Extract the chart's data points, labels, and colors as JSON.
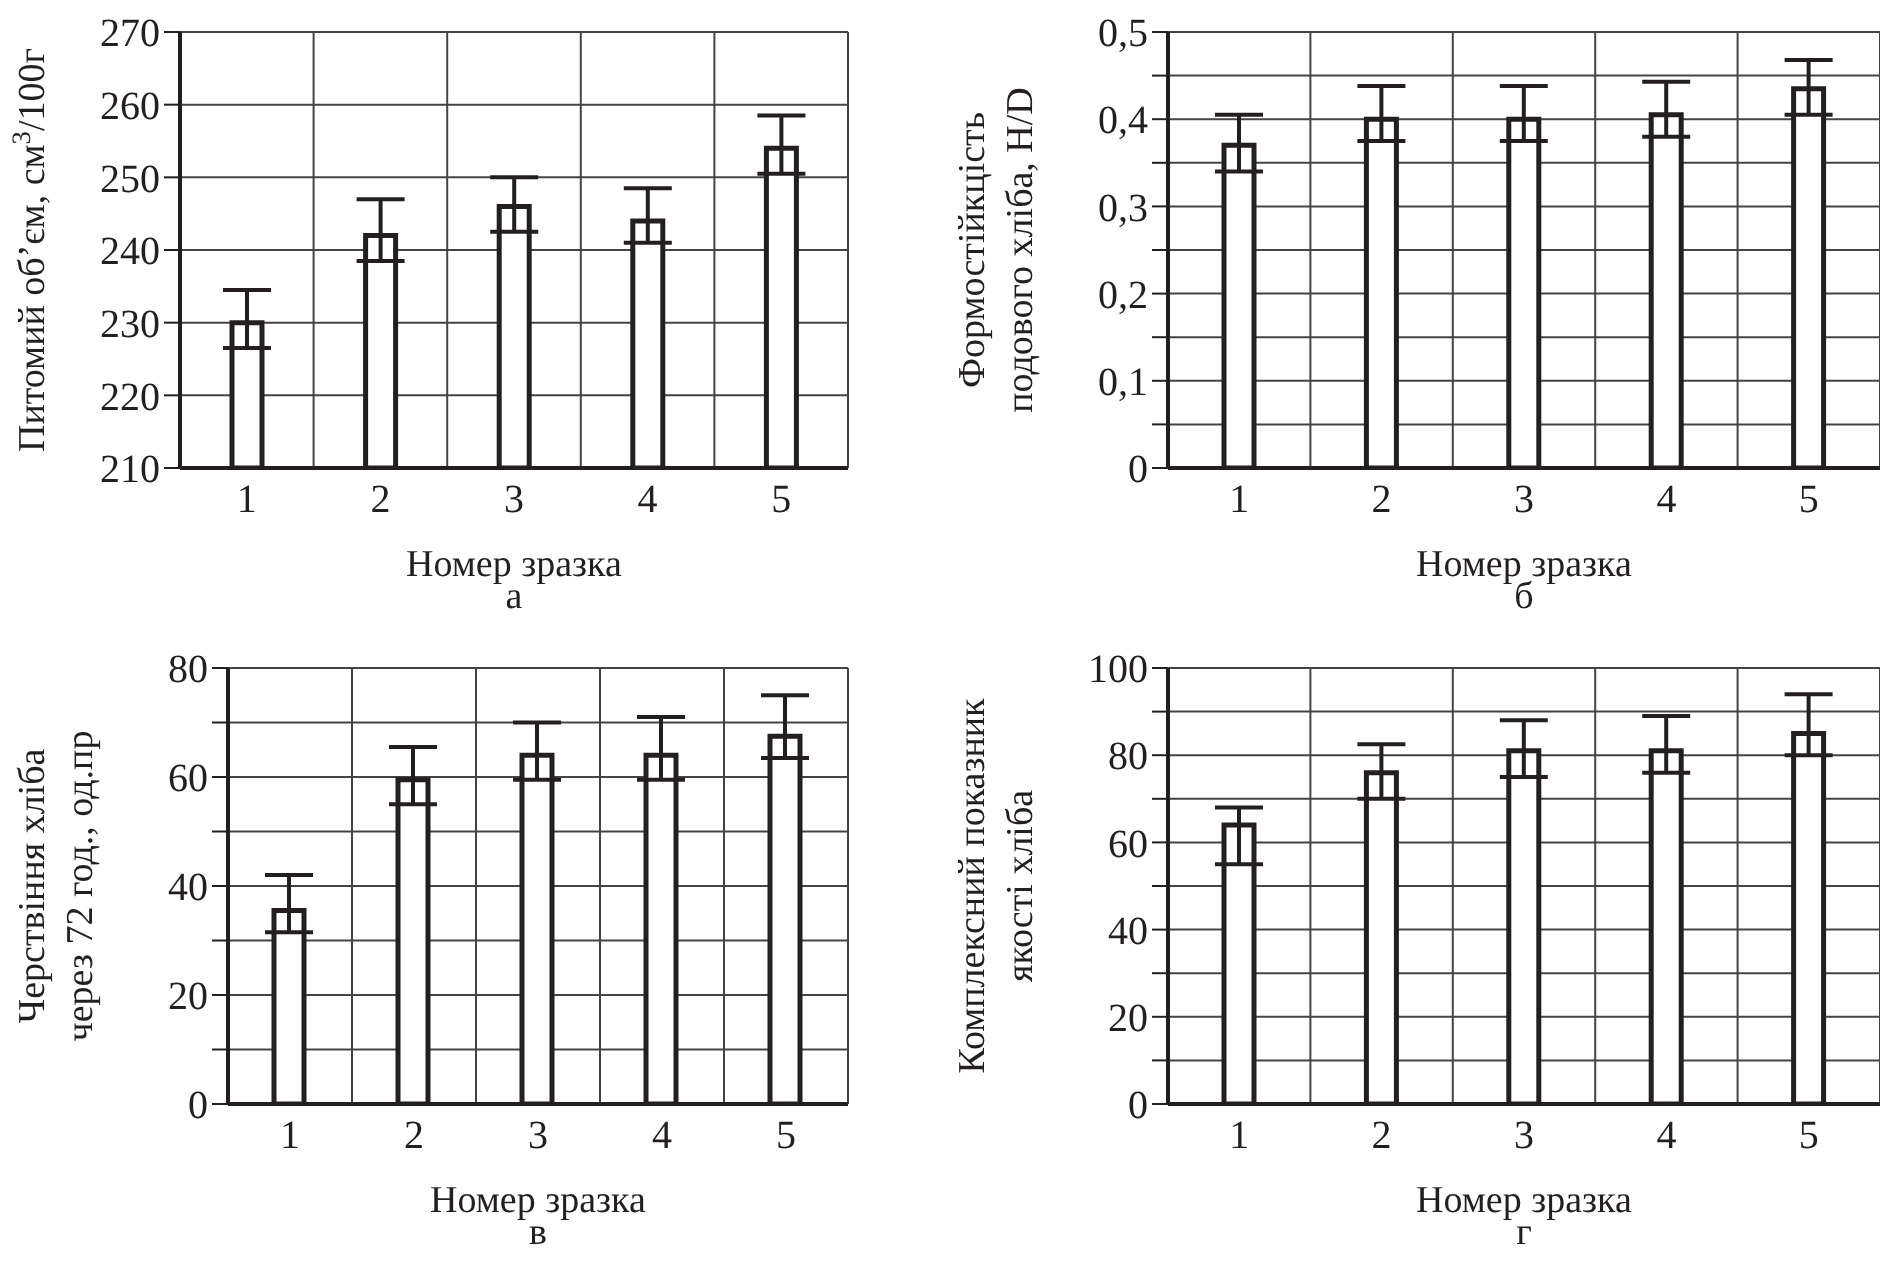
{
  "chart_data": [
    {
      "type": "bar",
      "xlabel": "Номер зразка",
      "ylabel": "Питомий об’єм, см$^{3}$/100г",
      "annotations": [
        "а"
      ],
      "categories": [
        "1",
        "2",
        "3",
        "4",
        "5"
      ],
      "color": "#231f20",
      "values": [
        230,
        242,
        246,
        244,
        254
      ],
      "errors": [
        [
          226.5,
          234.5
        ],
        [
          238.5,
          247
        ],
        [
          242.5,
          250
        ],
        [
          241,
          248.5
        ],
        [
          250.5,
          258.5
        ]
      ],
      "ylim": [
        210,
        270
      ],
      "yticks": [
        210,
        220,
        230,
        240,
        250,
        260,
        270
      ],
      "grid": true
    },
    {
      "type": "bar",
      "xlabel": "Номер зразка",
      "ylabel": "Формостійкцість подового хліба, H/D",
      "annotations": [
        "б"
      ],
      "categories": [
        "1",
        "2",
        "3",
        "4",
        "5"
      ],
      "color": "#231f20",
      "values": [
        0.37,
        0.4,
        0.4,
        0.405,
        0.435
      ],
      "errors": [
        [
          0.34,
          0.405
        ],
        [
          0.375,
          0.438
        ],
        [
          0.375,
          0.438
        ],
        [
          0.38,
          0.443
        ],
        [
          0.405,
          0.468
        ]
      ],
      "ylim": [
        0,
        0.5
      ],
      "yticks": [
        0,
        {
          "value": 0.05,
          "label": null
        },
        {
          "value": 0.1,
          "label": "0,1"
        },
        {
          "value": 0.15,
          "label": null
        },
        {
          "value": 0.2,
          "label": "0,2"
        },
        {
          "value": 0.25,
          "label": null
        },
        {
          "value": 0.3,
          "label": "0,3"
        },
        {
          "value": 0.35,
          "label": null
        },
        {
          "value": 0.4,
          "label": "0,4"
        },
        {
          "value": 0.45,
          "label": null
        },
        {
          "value": 0.5,
          "label": "0,5"
        }
      ],
      "grid": true
    },
    {
      "type": "bar",
      "xlabel": "Номер зразка",
      "ylabel": "Черствіння хліба через 72 год., од.пр",
      "annotations": [
        "в"
      ],
      "categories": [
        "1",
        "2",
        "3",
        "4",
        "5"
      ],
      "color": "#231f20",
      "values": [
        35.5,
        59.5,
        64,
        64,
        67.5
      ],
      "errors": [
        [
          31.5,
          42
        ],
        [
          55,
          65.5
        ],
        [
          59.5,
          70
        ],
        [
          59.5,
          71
        ],
        [
          63.5,
          75
        ]
      ],
      "ylim": [
        0,
        80
      ],
      "yticks": [
        0,
        {
          "value": 10,
          "label": null
        },
        20,
        {
          "value": 30,
          "label": null
        },
        40,
        {
          "value": 50,
          "label": null
        },
        60,
        {
          "value": 70,
          "label": null
        },
        80
      ],
      "grid": true
    },
    {
      "type": "bar",
      "xlabel": "Номер зразка",
      "ylabel": "Комплексний показник якості хліба",
      "annotations": [
        "г"
      ],
      "categories": [
        "1",
        "2",
        "3",
        "4",
        "5"
      ],
      "color": "#231f20",
      "values": [
        64,
        76,
        81,
        81,
        85
      ],
      "errors": [
        [
          55,
          68
        ],
        [
          70,
          82.5
        ],
        [
          75,
          88
        ],
        [
          76,
          89
        ],
        [
          80,
          94
        ]
      ],
      "ylim": [
        0,
        100
      ],
      "yticks": [
        0,
        {
          "value": 10,
          "label": null
        },
        20,
        {
          "value": 30,
          "label": null
        },
        40,
        {
          "value": 50,
          "label": null
        },
        60,
        {
          "value": 70,
          "label": null
        },
        80,
        {
          "value": 90,
          "label": null
        },
        100
      ],
      "grid": true
    }
  ]
}
